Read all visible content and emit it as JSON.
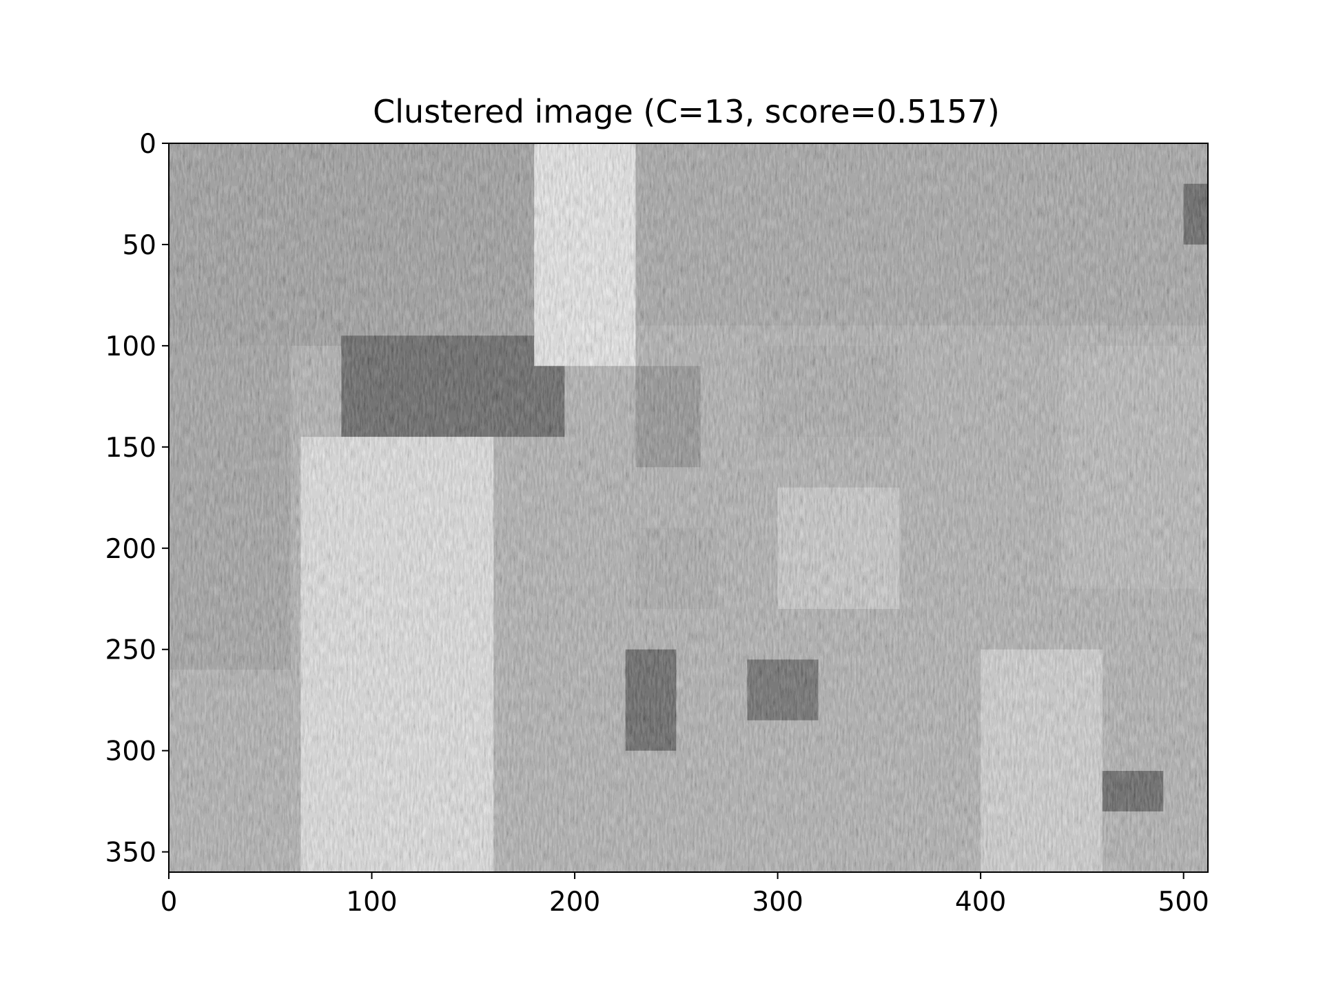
{
  "chart_data": {
    "type": "heatmap",
    "title": "Clustered image (C=13, score=0.5157)",
    "xlabel": "",
    "ylabel": "",
    "x_ticks": [
      0,
      100,
      200,
      300,
      400,
      500
    ],
    "y_ticks": [
      0,
      50,
      100,
      150,
      200,
      250,
      300,
      350
    ],
    "xlim": [
      0,
      512
    ],
    "ylim": [
      360,
      0
    ],
    "image_width": 512,
    "image_height": 360,
    "n_clusters": 13,
    "score": 0.5157,
    "colormap": "gray",
    "grid": false,
    "regions": [
      {
        "x": [
          0,
          512
        ],
        "y": [
          0,
          360
        ],
        "gray": 0.55
      },
      {
        "x": [
          0,
          180
        ],
        "y": [
          0,
          100
        ],
        "gray": 0.42
      },
      {
        "x": [
          180,
          512
        ],
        "y": [
          0,
          90
        ],
        "gray": 0.48
      },
      {
        "x": [
          85,
          195
        ],
        "y": [
          95,
          145
        ],
        "gray": 0.02
      },
      {
        "x": [
          290,
          360
        ],
        "y": [
          100,
          145
        ],
        "gray": 0.5
      },
      {
        "x": [
          230,
          262
        ],
        "y": [
          110,
          160
        ],
        "gray": 0.35
      },
      {
        "x": [
          65,
          160
        ],
        "y": [
          145,
          360
        ],
        "gray": 0.85
      },
      {
        "x": [
          300,
          360
        ],
        "y": [
          170,
          230
        ],
        "gray": 0.7
      },
      {
        "x": [
          230,
          270
        ],
        "y": [
          190,
          230
        ],
        "gray": 0.5
      },
      {
        "x": [
          225,
          250
        ],
        "y": [
          250,
          300
        ],
        "gray": 0.02
      },
      {
        "x": [
          285,
          320
        ],
        "y": [
          255,
          285
        ],
        "gray": 0.08
      },
      {
        "x": [
          0,
          60
        ],
        "y": [
          100,
          260
        ],
        "gray": 0.45
      },
      {
        "x": [
          440,
          512
        ],
        "y": [
          100,
          220
        ],
        "gray": 0.6
      },
      {
        "x": [
          180,
          230
        ],
        "y": [
          0,
          110
        ],
        "gray": 0.9
      },
      {
        "x": [
          400,
          460
        ],
        "y": [
          250,
          360
        ],
        "gray": 0.75
      },
      {
        "x": [
          500,
          512
        ],
        "y": [
          20,
          50
        ],
        "gray": 0.02
      },
      {
        "x": [
          460,
          490
        ],
        "y": [
          310,
          330
        ],
        "gray": 0.02
      }
    ]
  }
}
